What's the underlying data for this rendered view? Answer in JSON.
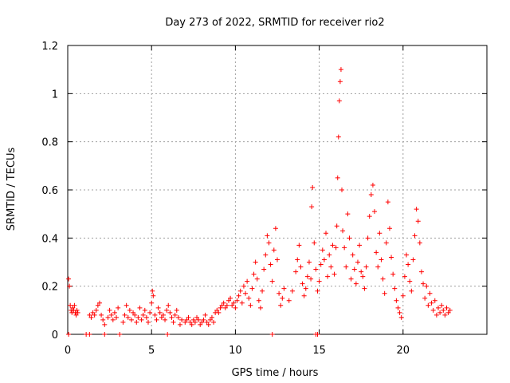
{
  "chart_data": {
    "type": "scatter",
    "title": "Day 273 of 2022, SRMTID for receiver rio2",
    "xlabel": "GPS time / hours",
    "ylabel": "SRMTID / TECUs",
    "xlim": [
      0,
      25
    ],
    "ylim": [
      0,
      1.2
    ],
    "x_ticks": [
      0,
      5,
      10,
      15,
      20
    ],
    "y_ticks": [
      0,
      0.2,
      0.4,
      0.6,
      0.8,
      1,
      1.2
    ],
    "x_tick_labels": [
      "0",
      "5",
      "10",
      "15",
      "20"
    ],
    "y_tick_labels": [
      "0",
      "0.2",
      "0.4",
      "0.6",
      "0.8",
      "1",
      "1.2"
    ],
    "grid": true,
    "marker": "+",
    "color": "#ff0000",
    "series": [
      {
        "name": "rio2",
        "points": [
          [
            0.05,
            0.23
          ],
          [
            0.1,
            0.2
          ],
          [
            0.15,
            0.12
          ],
          [
            0.2,
            0.1
          ],
          [
            0.25,
            0.09
          ],
          [
            0.3,
            0.11
          ],
          [
            0.35,
            0.1
          ],
          [
            0.4,
            0.12
          ],
          [
            0.45,
            0.09
          ],
          [
            0.5,
            0.08
          ],
          [
            0.55,
            0.1
          ],
          [
            0.6,
            0.09
          ],
          [
            1.3,
            0.08
          ],
          [
            1.4,
            0.07
          ],
          [
            1.5,
            0.09
          ],
          [
            1.6,
            0.08
          ],
          [
            1.7,
            0.1
          ],
          [
            1.8,
            0.12
          ],
          [
            1.9,
            0.13
          ],
          [
            2.0,
            0.08
          ],
          [
            2.1,
            0.06
          ],
          [
            2.2,
            0.04
          ],
          [
            2.4,
            0.07
          ],
          [
            2.5,
            0.1
          ],
          [
            2.6,
            0.08
          ],
          [
            2.7,
            0.06
          ],
          [
            2.8,
            0.09
          ],
          [
            2.9,
            0.07
          ],
          [
            3.0,
            0.11
          ],
          [
            3.3,
            0.05
          ],
          [
            3.4,
            0.08
          ],
          [
            3.5,
            0.12
          ],
          [
            3.6,
            0.07
          ],
          [
            3.7,
            0.1
          ],
          [
            3.8,
            0.06
          ],
          [
            3.9,
            0.09
          ],
          [
            4.0,
            0.08
          ],
          [
            4.1,
            0.05
          ],
          [
            4.2,
            0.07
          ],
          [
            4.3,
            0.11
          ],
          [
            4.4,
            0.06
          ],
          [
            4.5,
            0.08
          ],
          [
            4.6,
            0.1
          ],
          [
            4.7,
            0.07
          ],
          [
            4.8,
            0.05
          ],
          [
            4.9,
            0.09
          ],
          [
            5.0,
            0.13
          ],
          [
            5.05,
            0.18
          ],
          [
            5.1,
            0.16
          ],
          [
            5.2,
            0.08
          ],
          [
            5.3,
            0.06
          ],
          [
            5.4,
            0.11
          ],
          [
            5.5,
            0.09
          ],
          [
            5.6,
            0.07
          ],
          [
            5.7,
            0.08
          ],
          [
            5.8,
            0.06
          ],
          [
            5.9,
            0.1
          ],
          [
            6.0,
            0.12
          ],
          [
            6.1,
            0.09
          ],
          [
            6.2,
            0.07
          ],
          [
            6.3,
            0.05
          ],
          [
            6.4,
            0.08
          ],
          [
            6.5,
            0.1
          ],
          [
            6.6,
            0.07
          ],
          [
            6.7,
            0.04
          ],
          [
            6.8,
            0.06
          ],
          [
            7.0,
            0.05
          ],
          [
            7.1,
            0.06
          ],
          [
            7.2,
            0.07
          ],
          [
            7.3,
            0.05
          ],
          [
            7.4,
            0.04
          ],
          [
            7.5,
            0.06
          ],
          [
            7.6,
            0.05
          ],
          [
            7.7,
            0.07
          ],
          [
            7.8,
            0.06
          ],
          [
            7.9,
            0.04
          ],
          [
            8.0,
            0.05
          ],
          [
            8.1,
            0.06
          ],
          [
            8.2,
            0.08
          ],
          [
            8.3,
            0.05
          ],
          [
            8.4,
            0.04
          ],
          [
            8.5,
            0.06
          ],
          [
            8.6,
            0.07
          ],
          [
            8.7,
            0.05
          ],
          [
            8.8,
            0.09
          ],
          [
            8.9,
            0.1
          ],
          [
            9.0,
            0.09
          ],
          [
            9.1,
            0.11
          ],
          [
            9.2,
            0.12
          ],
          [
            9.3,
            0.13
          ],
          [
            9.4,
            0.11
          ],
          [
            9.5,
            0.12
          ],
          [
            9.6,
            0.14
          ],
          [
            9.7,
            0.15
          ],
          [
            9.8,
            0.12
          ],
          [
            9.9,
            0.13
          ],
          [
            10.0,
            0.11
          ],
          [
            10.1,
            0.14
          ],
          [
            10.2,
            0.16
          ],
          [
            10.3,
            0.18
          ],
          [
            10.4,
            0.13
          ],
          [
            10.5,
            0.2
          ],
          [
            10.6,
            0.17
          ],
          [
            10.7,
            0.22
          ],
          [
            10.8,
            0.15
          ],
          [
            10.9,
            0.12
          ],
          [
            11.0,
            0.19
          ],
          [
            11.1,
            0.25
          ],
          [
            11.2,
            0.3
          ],
          [
            11.3,
            0.23
          ],
          [
            11.4,
            0.14
          ],
          [
            11.5,
            0.11
          ],
          [
            11.6,
            0.18
          ],
          [
            11.7,
            0.27
          ],
          [
            11.8,
            0.33
          ],
          [
            11.9,
            0.41
          ],
          [
            12.0,
            0.38
          ],
          [
            12.1,
            0.29
          ],
          [
            12.2,
            0.22
          ],
          [
            12.3,
            0.35
          ],
          [
            12.4,
            0.44
          ],
          [
            12.5,
            0.31
          ],
          [
            12.6,
            0.17
          ],
          [
            12.7,
            0.12
          ],
          [
            12.8,
            0.15
          ],
          [
            12.9,
            0.19
          ],
          [
            13.2,
            0.14
          ],
          [
            13.4,
            0.18
          ],
          [
            13.6,
            0.26
          ],
          [
            13.7,
            0.31
          ],
          [
            13.8,
            0.37
          ],
          [
            13.9,
            0.28
          ],
          [
            14.0,
            0.21
          ],
          [
            14.1,
            0.16
          ],
          [
            14.2,
            0.19
          ],
          [
            14.3,
            0.24
          ],
          [
            14.4,
            0.3
          ],
          [
            14.5,
            0.23
          ],
          [
            14.55,
            0.53
          ],
          [
            14.6,
            0.61
          ],
          [
            14.7,
            0.38
          ],
          [
            14.8,
            0.27
          ],
          [
            14.9,
            0.18
          ],
          [
            15.0,
            0.22
          ],
          [
            15.1,
            0.29
          ],
          [
            15.2,
            0.35
          ],
          [
            15.3,
            0.31
          ],
          [
            15.4,
            0.42
          ],
          [
            15.5,
            0.24
          ],
          [
            15.6,
            0.33
          ],
          [
            15.7,
            0.28
          ],
          [
            15.8,
            0.37
          ],
          [
            15.9,
            0.25
          ],
          [
            16.0,
            0.36
          ],
          [
            16.05,
            0.45
          ],
          [
            16.1,
            0.65
          ],
          [
            16.15,
            0.82
          ],
          [
            16.2,
            0.97
          ],
          [
            16.25,
            1.05
          ],
          [
            16.3,
            1.1
          ],
          [
            16.35,
            0.6
          ],
          [
            16.4,
            0.43
          ],
          [
            16.5,
            0.36
          ],
          [
            16.6,
            0.28
          ],
          [
            16.7,
            0.5
          ],
          [
            16.8,
            0.4
          ],
          [
            16.9,
            0.23
          ],
          [
            17.0,
            0.33
          ],
          [
            17.1,
            0.27
          ],
          [
            17.2,
            0.21
          ],
          [
            17.3,
            0.3
          ],
          [
            17.4,
            0.37
          ],
          [
            17.5,
            0.26
          ],
          [
            17.6,
            0.24
          ],
          [
            17.7,
            0.19
          ],
          [
            17.8,
            0.28
          ],
          [
            17.9,
            0.4
          ],
          [
            18.0,
            0.49
          ],
          [
            18.1,
            0.58
          ],
          [
            18.2,
            0.62
          ],
          [
            18.3,
            0.51
          ],
          [
            18.4,
            0.34
          ],
          [
            18.5,
            0.28
          ],
          [
            18.6,
            0.42
          ],
          [
            18.7,
            0.31
          ],
          [
            18.8,
            0.23
          ],
          [
            18.9,
            0.17
          ],
          [
            19.0,
            0.38
          ],
          [
            19.1,
            0.55
          ],
          [
            19.2,
            0.44
          ],
          [
            19.3,
            0.32
          ],
          [
            19.4,
            0.25
          ],
          [
            19.5,
            0.19
          ],
          [
            19.6,
            0.14
          ],
          [
            19.7,
            0.11
          ],
          [
            19.8,
            0.09
          ],
          [
            19.9,
            0.07
          ],
          [
            20.0,
            0.16
          ],
          [
            20.1,
            0.24
          ],
          [
            20.2,
            0.33
          ],
          [
            20.3,
            0.29
          ],
          [
            20.4,
            0.22
          ],
          [
            20.5,
            0.18
          ],
          [
            20.6,
            0.31
          ],
          [
            20.7,
            0.41
          ],
          [
            20.8,
            0.52
          ],
          [
            20.9,
            0.47
          ],
          [
            21.0,
            0.38
          ],
          [
            21.1,
            0.26
          ],
          [
            21.2,
            0.21
          ],
          [
            21.3,
            0.15
          ],
          [
            21.4,
            0.2
          ],
          [
            21.5,
            0.12
          ],
          [
            21.6,
            0.17
          ],
          [
            21.7,
            0.13
          ],
          [
            21.8,
            0.1
          ],
          [
            21.9,
            0.14
          ],
          [
            22.0,
            0.08
          ],
          [
            22.1,
            0.11
          ],
          [
            22.2,
            0.09
          ],
          [
            22.3,
            0.12
          ],
          [
            22.4,
            0.1
          ],
          [
            22.5,
            0.08
          ],
          [
            22.6,
            0.11
          ],
          [
            22.7,
            0.09
          ],
          [
            22.8,
            0.1
          ],
          [
            0.05,
            0.0
          ],
          [
            1.1,
            0.0
          ],
          [
            1.3,
            0.0
          ],
          [
            2.2,
            0.0
          ],
          [
            3.1,
            0.0
          ],
          [
            5.95,
            0.0
          ],
          [
            12.2,
            0.0
          ],
          [
            14.8,
            0.0
          ],
          [
            14.9,
            0.0
          ]
        ]
      }
    ]
  }
}
